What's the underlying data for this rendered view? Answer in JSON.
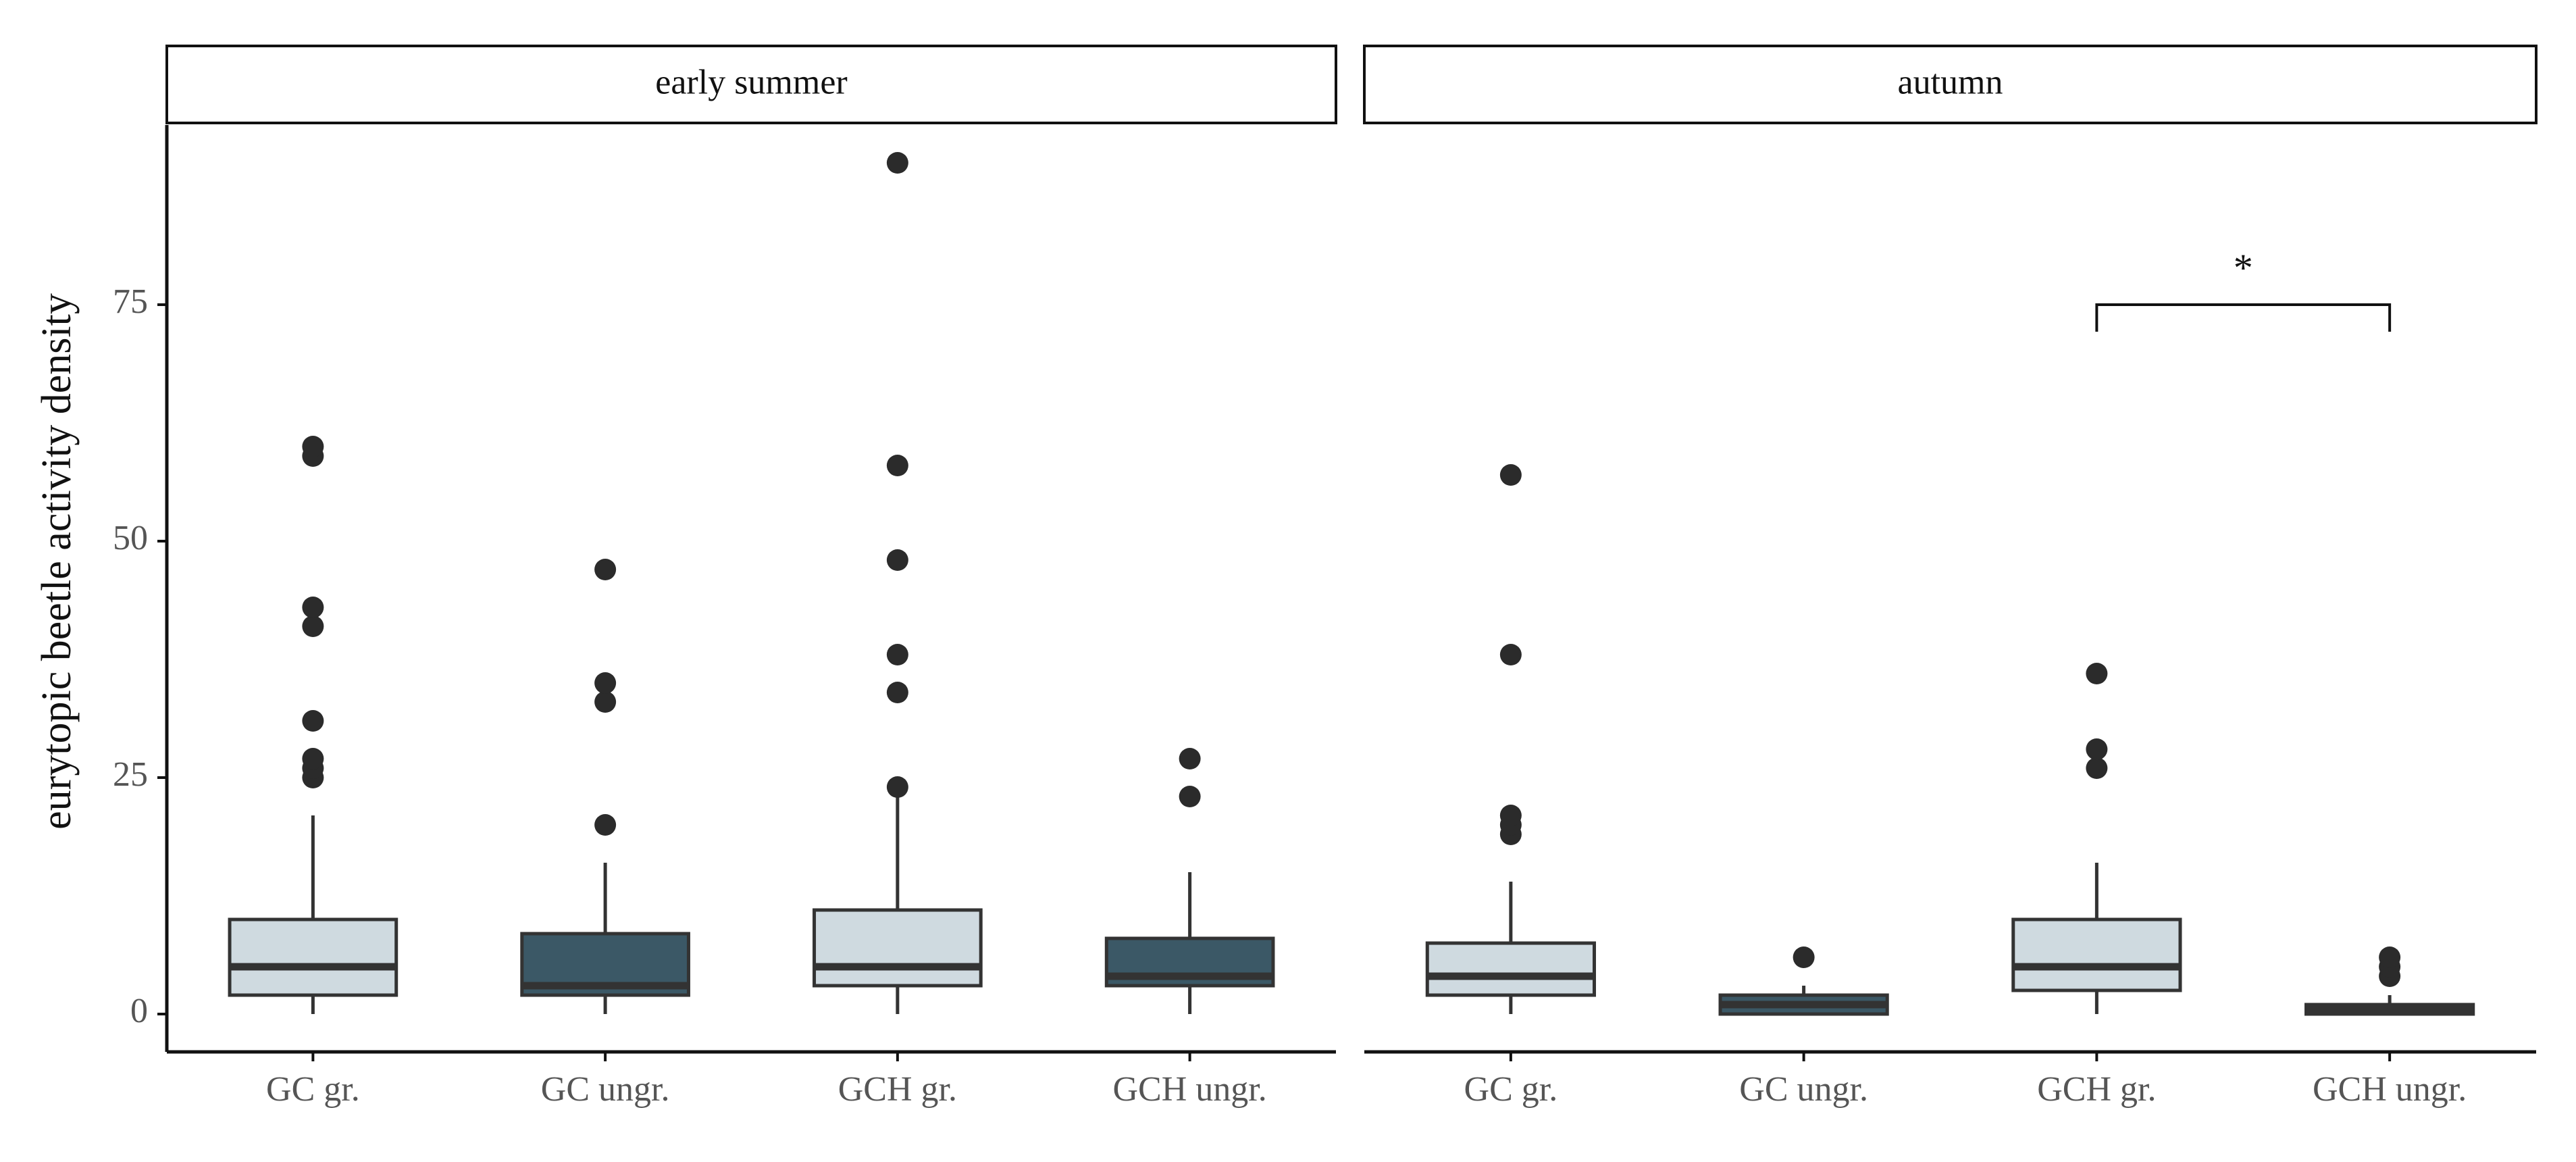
{
  "chart_data": {
    "type": "boxplot",
    "ylabel": "eurytopic beetle activity density",
    "xlabel": "",
    "ylim": [
      -4,
      94
    ],
    "y_ticks": [
      0,
      25,
      50,
      75
    ],
    "y_tick_labels": [
      "0",
      "25",
      "50",
      "75"
    ],
    "categories": [
      "GC gr.",
      "GC ungr.",
      "GCH gr.",
      "GCH ungr."
    ],
    "colors": {
      "grazed_fill": "#CFDAE0",
      "ungrazed_fill": "#3B5866",
      "box_stroke": "#333333",
      "median": "#333333",
      "outlier": "#2b2b2b",
      "axis": "#111111"
    },
    "panels": [
      {
        "label": "early summer",
        "boxes": [
          {
            "category": "GC gr.",
            "fill": "grazed_fill",
            "q1": 2,
            "median": 5,
            "q3": 10,
            "whisker_low": 0,
            "whisker_high": 21,
            "outliers": [
              25,
              26,
              27,
              31,
              41,
              43,
              59,
              60
            ]
          },
          {
            "category": "GC ungr.",
            "fill": "ungrazed_fill",
            "q1": 2,
            "median": 3,
            "q3": 8.5,
            "whisker_low": 0,
            "whisker_high": 16,
            "outliers": [
              20,
              33,
              35,
              47
            ]
          },
          {
            "category": "GCH gr.",
            "fill": "grazed_fill",
            "q1": 3,
            "median": 5,
            "q3": 11,
            "whisker_low": 0,
            "whisker_high": 24,
            "outliers": [
              24,
              34,
              38,
              48,
              58,
              90
            ]
          },
          {
            "category": "GCH ungr.",
            "fill": "ungrazed_fill",
            "q1": 3,
            "median": 4,
            "q3": 8,
            "whisker_low": 0,
            "whisker_high": 15,
            "outliers": [
              23,
              27
            ]
          }
        ]
      },
      {
        "label": "autumn",
        "boxes": [
          {
            "category": "GC gr.",
            "fill": "grazed_fill",
            "q1": 2,
            "median": 4,
            "q3": 7.5,
            "whisker_low": 0,
            "whisker_high": 14,
            "outliers": [
              19,
              20,
              21,
              38,
              57
            ]
          },
          {
            "category": "GC ungr.",
            "fill": "ungrazed_fill",
            "q1": 0,
            "median": 1,
            "q3": 2,
            "whisker_low": 0,
            "whisker_high": 3,
            "outliers": [
              6
            ]
          },
          {
            "category": "GCH gr.",
            "fill": "grazed_fill",
            "q1": 2.5,
            "median": 5,
            "q3": 10,
            "whisker_low": 0,
            "whisker_high": 16,
            "outliers": [
              26,
              28,
              36
            ]
          },
          {
            "category": "GCH ungr.",
            "fill": "ungrazed_fill",
            "q1": 0,
            "median": 0.5,
            "q3": 1,
            "whisker_low": 0,
            "whisker_high": 2,
            "outliers": [
              4,
              5,
              6
            ]
          }
        ],
        "significance": {
          "from": "GCH gr.",
          "to": "GCH ungr.",
          "y": 75,
          "label": "*"
        }
      }
    ]
  }
}
